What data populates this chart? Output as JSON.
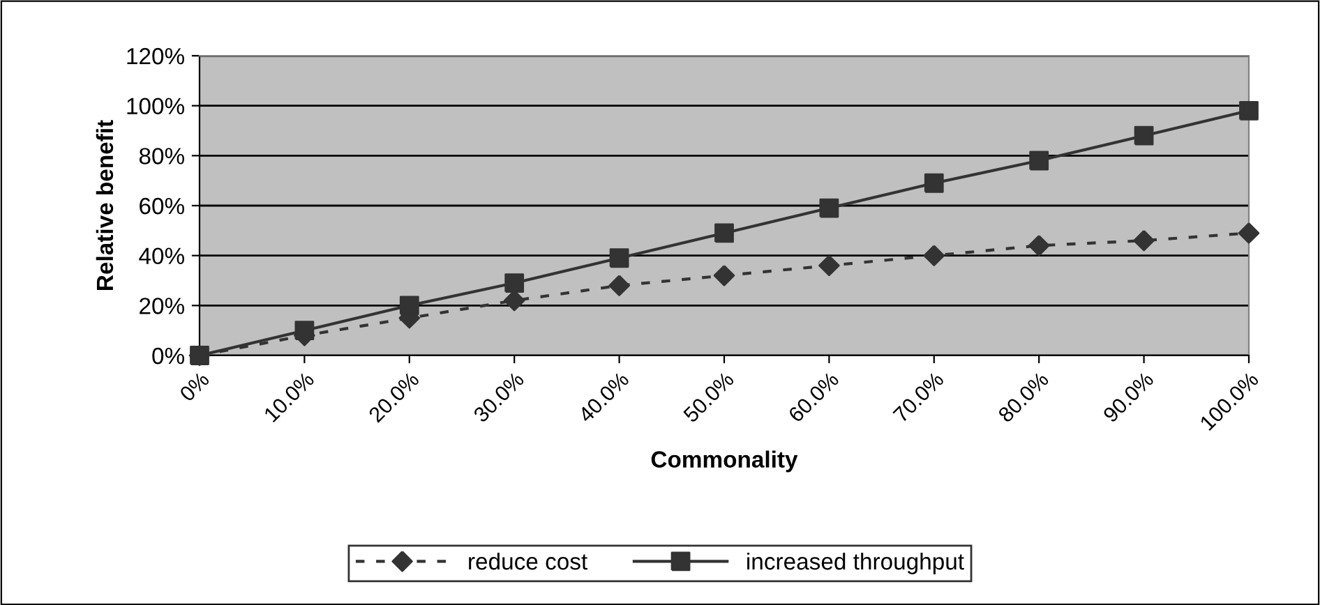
{
  "chart_data": {
    "type": "line",
    "xlabel": "Commonality",
    "ylabel": "Relative benefit",
    "categories": [
      "0%",
      "10.0%",
      "20.0%",
      "30.0%",
      "40.0%",
      "50.0%",
      "60.0%",
      "70.0%",
      "80.0%",
      "90.0%",
      "100.0%"
    ],
    "series": [
      {
        "name": "reduce cost",
        "color": "#333333",
        "marker": "diamond",
        "line_style": "dashed",
        "values": [
          0,
          8,
          15,
          22,
          28,
          32,
          36,
          40,
          44,
          46,
          49
        ]
      },
      {
        "name": "increased throughput",
        "color": "#333333",
        "marker": "square",
        "line_style": "solid",
        "values": [
          0,
          10,
          20,
          29,
          39,
          49,
          59,
          69,
          78,
          88,
          98
        ]
      }
    ],
    "ylim": [
      0,
      120
    ],
    "yticks": [
      {
        "value": 0,
        "label": "0%"
      },
      {
        "value": 20,
        "label": "20%"
      },
      {
        "value": 40,
        "label": "40%"
      },
      {
        "value": 60,
        "label": "60%"
      },
      {
        "value": 80,
        "label": "80%"
      },
      {
        "value": 100,
        "label": "100%"
      },
      {
        "value": 120,
        "label": "120%"
      }
    ],
    "grid": "y",
    "legend": "bottom"
  }
}
